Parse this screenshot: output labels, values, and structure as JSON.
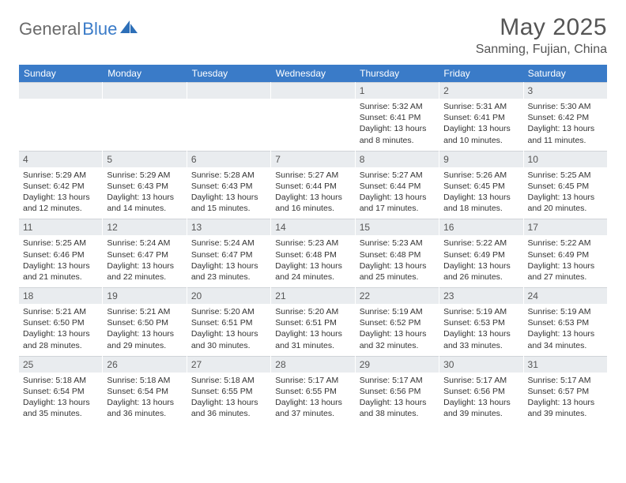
{
  "logo": {
    "text_gray": "General",
    "text_blue": "Blue"
  },
  "header": {
    "title": "May 2025",
    "location": "Sanming, Fujian, China"
  },
  "colors": {
    "header_bar": "#3a7bc8",
    "daynum_bg": "#e9ecef",
    "text": "#333333",
    "logo_gray": "#6a6a6a",
    "logo_blue": "#3a7bc8"
  },
  "day_names": [
    "Sunday",
    "Monday",
    "Tuesday",
    "Wednesday",
    "Thursday",
    "Friday",
    "Saturday"
  ],
  "weeks": [
    [
      {
        "day": "",
        "sunrise": "",
        "sunset": "",
        "daylight": ""
      },
      {
        "day": "",
        "sunrise": "",
        "sunset": "",
        "daylight": ""
      },
      {
        "day": "",
        "sunrise": "",
        "sunset": "",
        "daylight": ""
      },
      {
        "day": "",
        "sunrise": "",
        "sunset": "",
        "daylight": ""
      },
      {
        "day": "1",
        "sunrise": "Sunrise: 5:32 AM",
        "sunset": "Sunset: 6:41 PM",
        "daylight": "Daylight: 13 hours and 8 minutes."
      },
      {
        "day": "2",
        "sunrise": "Sunrise: 5:31 AM",
        "sunset": "Sunset: 6:41 PM",
        "daylight": "Daylight: 13 hours and 10 minutes."
      },
      {
        "day": "3",
        "sunrise": "Sunrise: 5:30 AM",
        "sunset": "Sunset: 6:42 PM",
        "daylight": "Daylight: 13 hours and 11 minutes."
      }
    ],
    [
      {
        "day": "4",
        "sunrise": "Sunrise: 5:29 AM",
        "sunset": "Sunset: 6:42 PM",
        "daylight": "Daylight: 13 hours and 12 minutes."
      },
      {
        "day": "5",
        "sunrise": "Sunrise: 5:29 AM",
        "sunset": "Sunset: 6:43 PM",
        "daylight": "Daylight: 13 hours and 14 minutes."
      },
      {
        "day": "6",
        "sunrise": "Sunrise: 5:28 AM",
        "sunset": "Sunset: 6:43 PM",
        "daylight": "Daylight: 13 hours and 15 minutes."
      },
      {
        "day": "7",
        "sunrise": "Sunrise: 5:27 AM",
        "sunset": "Sunset: 6:44 PM",
        "daylight": "Daylight: 13 hours and 16 minutes."
      },
      {
        "day": "8",
        "sunrise": "Sunrise: 5:27 AM",
        "sunset": "Sunset: 6:44 PM",
        "daylight": "Daylight: 13 hours and 17 minutes."
      },
      {
        "day": "9",
        "sunrise": "Sunrise: 5:26 AM",
        "sunset": "Sunset: 6:45 PM",
        "daylight": "Daylight: 13 hours and 18 minutes."
      },
      {
        "day": "10",
        "sunrise": "Sunrise: 5:25 AM",
        "sunset": "Sunset: 6:45 PM",
        "daylight": "Daylight: 13 hours and 20 minutes."
      }
    ],
    [
      {
        "day": "11",
        "sunrise": "Sunrise: 5:25 AM",
        "sunset": "Sunset: 6:46 PM",
        "daylight": "Daylight: 13 hours and 21 minutes."
      },
      {
        "day": "12",
        "sunrise": "Sunrise: 5:24 AM",
        "sunset": "Sunset: 6:47 PM",
        "daylight": "Daylight: 13 hours and 22 minutes."
      },
      {
        "day": "13",
        "sunrise": "Sunrise: 5:24 AM",
        "sunset": "Sunset: 6:47 PM",
        "daylight": "Daylight: 13 hours and 23 minutes."
      },
      {
        "day": "14",
        "sunrise": "Sunrise: 5:23 AM",
        "sunset": "Sunset: 6:48 PM",
        "daylight": "Daylight: 13 hours and 24 minutes."
      },
      {
        "day": "15",
        "sunrise": "Sunrise: 5:23 AM",
        "sunset": "Sunset: 6:48 PM",
        "daylight": "Daylight: 13 hours and 25 minutes."
      },
      {
        "day": "16",
        "sunrise": "Sunrise: 5:22 AM",
        "sunset": "Sunset: 6:49 PM",
        "daylight": "Daylight: 13 hours and 26 minutes."
      },
      {
        "day": "17",
        "sunrise": "Sunrise: 5:22 AM",
        "sunset": "Sunset: 6:49 PM",
        "daylight": "Daylight: 13 hours and 27 minutes."
      }
    ],
    [
      {
        "day": "18",
        "sunrise": "Sunrise: 5:21 AM",
        "sunset": "Sunset: 6:50 PM",
        "daylight": "Daylight: 13 hours and 28 minutes."
      },
      {
        "day": "19",
        "sunrise": "Sunrise: 5:21 AM",
        "sunset": "Sunset: 6:50 PM",
        "daylight": "Daylight: 13 hours and 29 minutes."
      },
      {
        "day": "20",
        "sunrise": "Sunrise: 5:20 AM",
        "sunset": "Sunset: 6:51 PM",
        "daylight": "Daylight: 13 hours and 30 minutes."
      },
      {
        "day": "21",
        "sunrise": "Sunrise: 5:20 AM",
        "sunset": "Sunset: 6:51 PM",
        "daylight": "Daylight: 13 hours and 31 minutes."
      },
      {
        "day": "22",
        "sunrise": "Sunrise: 5:19 AM",
        "sunset": "Sunset: 6:52 PM",
        "daylight": "Daylight: 13 hours and 32 minutes."
      },
      {
        "day": "23",
        "sunrise": "Sunrise: 5:19 AM",
        "sunset": "Sunset: 6:53 PM",
        "daylight": "Daylight: 13 hours and 33 minutes."
      },
      {
        "day": "24",
        "sunrise": "Sunrise: 5:19 AM",
        "sunset": "Sunset: 6:53 PM",
        "daylight": "Daylight: 13 hours and 34 minutes."
      }
    ],
    [
      {
        "day": "25",
        "sunrise": "Sunrise: 5:18 AM",
        "sunset": "Sunset: 6:54 PM",
        "daylight": "Daylight: 13 hours and 35 minutes."
      },
      {
        "day": "26",
        "sunrise": "Sunrise: 5:18 AM",
        "sunset": "Sunset: 6:54 PM",
        "daylight": "Daylight: 13 hours and 36 minutes."
      },
      {
        "day": "27",
        "sunrise": "Sunrise: 5:18 AM",
        "sunset": "Sunset: 6:55 PM",
        "daylight": "Daylight: 13 hours and 36 minutes."
      },
      {
        "day": "28",
        "sunrise": "Sunrise: 5:17 AM",
        "sunset": "Sunset: 6:55 PM",
        "daylight": "Daylight: 13 hours and 37 minutes."
      },
      {
        "day": "29",
        "sunrise": "Sunrise: 5:17 AM",
        "sunset": "Sunset: 6:56 PM",
        "daylight": "Daylight: 13 hours and 38 minutes."
      },
      {
        "day": "30",
        "sunrise": "Sunrise: 5:17 AM",
        "sunset": "Sunset: 6:56 PM",
        "daylight": "Daylight: 13 hours and 39 minutes."
      },
      {
        "day": "31",
        "sunrise": "Sunrise: 5:17 AM",
        "sunset": "Sunset: 6:57 PM",
        "daylight": "Daylight: 13 hours and 39 minutes."
      }
    ]
  ]
}
